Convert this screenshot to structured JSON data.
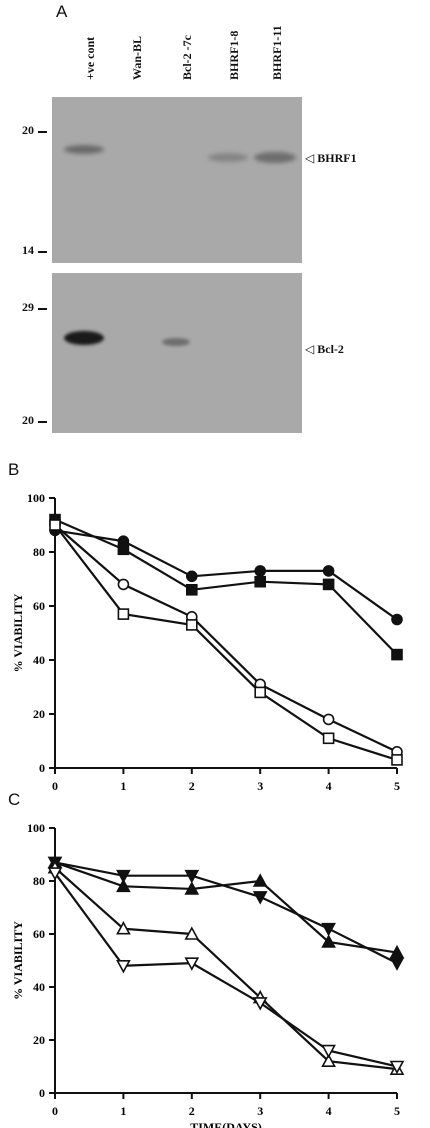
{
  "panels": {
    "a": "A",
    "b": "B",
    "c": "C"
  },
  "blot": {
    "lanes": [
      "+ve cont",
      "Wan-BL",
      "Bcl-2 -7c",
      "BHRF1-8",
      "BHRF1-11"
    ],
    "top_markers": [
      "20",
      "14"
    ],
    "bottom_markers": [
      "29",
      "20"
    ],
    "top_band_label": "BHRF1",
    "bottom_band_label": "Bcl-2",
    "gel_color": "#a9a9a9"
  },
  "chart_data": [
    {
      "type": "line",
      "ylabel": "% VIABILITY",
      "xlabel": "",
      "x": [
        0,
        1,
        2,
        3,
        4,
        5
      ],
      "xlim": [
        0,
        5
      ],
      "ylim": [
        0,
        100
      ],
      "yticks": [
        0,
        20,
        40,
        60,
        80,
        100
      ],
      "grid": false,
      "series": [
        {
          "marker": "filled-circle",
          "values": [
            88,
            84,
            71,
            73,
            73,
            55
          ]
        },
        {
          "marker": "filled-square",
          "values": [
            92,
            81,
            66,
            69,
            68,
            42
          ]
        },
        {
          "marker": "open-circle",
          "values": [
            90,
            68,
            56,
            31,
            18,
            6
          ]
        },
        {
          "marker": "open-square",
          "values": [
            90,
            57,
            53,
            28,
            11,
            3
          ]
        }
      ]
    },
    {
      "type": "line",
      "ylabel": "% VIABILITY",
      "xlabel": "TIME(DAYS)",
      "x": [
        0,
        1,
        2,
        3,
        4,
        5
      ],
      "xlim": [
        0,
        5
      ],
      "ylim": [
        0,
        100
      ],
      "yticks": [
        0,
        20,
        40,
        60,
        80,
        100
      ],
      "grid": false,
      "series": [
        {
          "marker": "filled-triangle-down",
          "values": [
            87,
            82,
            82,
            74,
            62,
            49
          ]
        },
        {
          "marker": "filled-triangle-up",
          "values": [
            87,
            78,
            77,
            80,
            57,
            53
          ]
        },
        {
          "marker": "open-triangle-up",
          "values": [
            85,
            62,
            60,
            36,
            12,
            9
          ]
        },
        {
          "marker": "open-triangle-down",
          "values": [
            83,
            48,
            49,
            34,
            16,
            10
          ]
        }
      ]
    }
  ]
}
